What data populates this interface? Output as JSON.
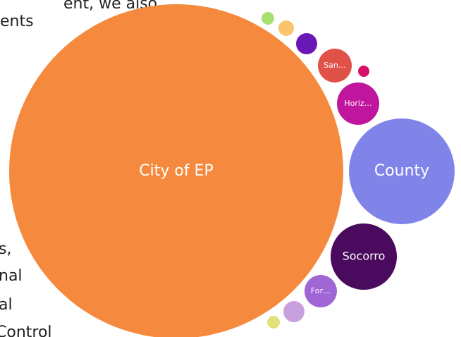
{
  "page_text": [
    "ent, we also",
    "ents",
    "s,",
    "nal",
    "al",
    "Control"
  ],
  "chart_data": {
    "type": "bubble",
    "categories": [
      "City of EP",
      "County",
      "Socorro",
      "Horiz…",
      "San…",
      null,
      null,
      null,
      null,
      "For…",
      null,
      null
    ],
    "values": [
      56169,
      5625,
      2209,
      900,
      576,
      64,
      225,
      121,
      81,
      529,
      225,
      81
    ],
    "colors": [
      "#f5893d",
      "#8084e8",
      "#4a0a5e",
      "#c0169e",
      "#e05248",
      "#d6116a",
      "#6a17b8",
      "#f9c46c",
      "#a6e070",
      "#a066d6",
      "#c9a0de",
      "#e2e27a"
    ]
  }
}
